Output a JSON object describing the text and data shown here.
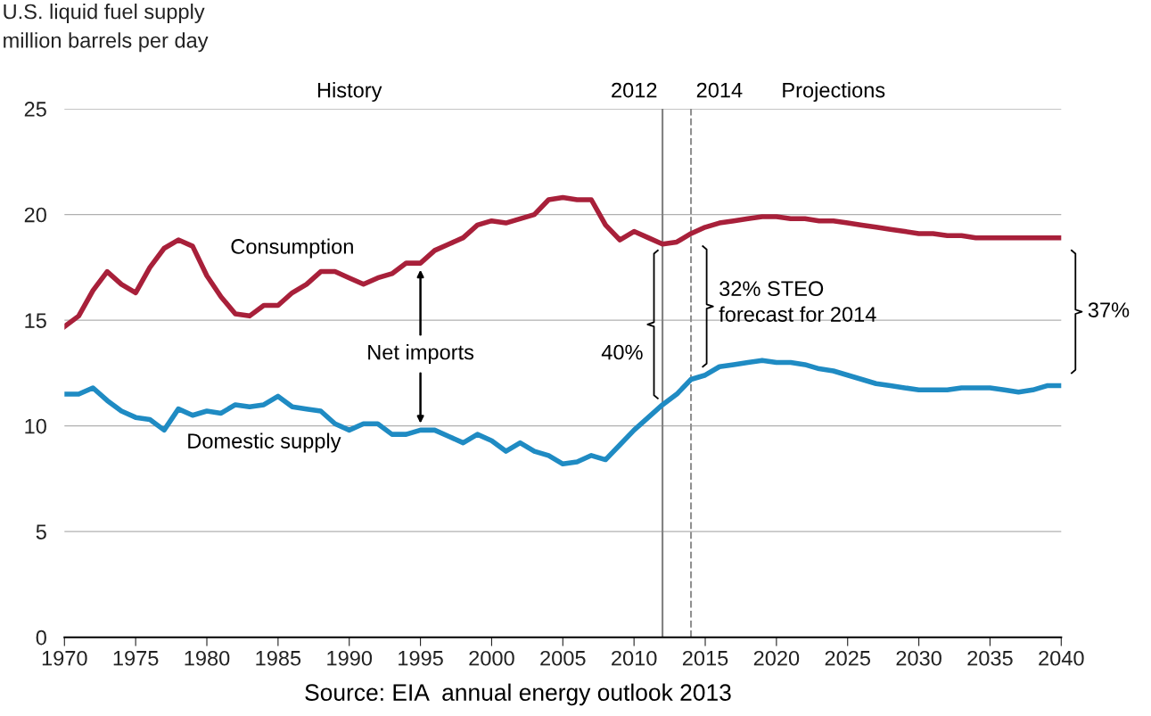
{
  "chart_data": {
    "type": "line",
    "ylabel": "U.S. liquid fuel supply\nmillion barrels per day",
    "x": [
      1970,
      1971,
      1972,
      1973,
      1974,
      1975,
      1976,
      1977,
      1978,
      1979,
      1980,
      1981,
      1982,
      1983,
      1984,
      1985,
      1986,
      1987,
      1988,
      1989,
      1990,
      1991,
      1992,
      1993,
      1994,
      1995,
      1996,
      1997,
      1998,
      1999,
      2000,
      2001,
      2002,
      2003,
      2004,
      2005,
      2006,
      2007,
      2008,
      2009,
      2010,
      2011,
      2012,
      2013,
      2014,
      2015,
      2016,
      2017,
      2018,
      2019,
      2020,
      2021,
      2022,
      2023,
      2024,
      2025,
      2026,
      2027,
      2028,
      2029,
      2030,
      2031,
      2032,
      2033,
      2034,
      2035,
      2036,
      2037,
      2038,
      2039,
      2040
    ],
    "series": [
      {
        "color": "#a8203a",
        "values": [
          14.7,
          15.2,
          16.4,
          17.3,
          16.7,
          16.3,
          17.5,
          18.4,
          18.8,
          18.5,
          17.1,
          16.1,
          15.3,
          15.2,
          15.7,
          15.7,
          16.3,
          16.7,
          17.3,
          17.3,
          17.0,
          16.7,
          17.0,
          17.2,
          17.7,
          17.7,
          18.3,
          18.6,
          18.9,
          19.5,
          19.7,
          19.6,
          19.8,
          20.0,
          20.7,
          20.8,
          20.7,
          20.7,
          19.5,
          18.8,
          19.2,
          18.9,
          18.6,
          18.7,
          19.1,
          19.4,
          19.6,
          19.7,
          19.8,
          19.9,
          19.9,
          19.8,
          19.8,
          19.7,
          19.7,
          19.6,
          19.5,
          19.4,
          19.3,
          19.2,
          19.1,
          19.1,
          19.0,
          19.0,
          18.9,
          18.9,
          18.9,
          18.9,
          18.9,
          18.9,
          18.9
        ]
      },
      {
        "color": "#1f8bc3",
        "values": [
          11.5,
          11.5,
          11.8,
          11.2,
          10.7,
          10.4,
          10.3,
          9.8,
          10.8,
          10.5,
          10.7,
          10.6,
          11.0,
          10.9,
          11.0,
          11.4,
          10.9,
          10.8,
          10.7,
          10.1,
          9.8,
          10.1,
          10.1,
          9.6,
          9.6,
          9.8,
          9.8,
          9.5,
          9.2,
          9.6,
          9.3,
          8.8,
          9.2,
          8.8,
          8.6,
          8.2,
          8.3,
          8.6,
          8.4,
          9.1,
          9.8,
          10.4,
          11.0,
          11.5,
          12.2,
          12.4,
          12.8,
          12.9,
          13.0,
          13.1,
          13.0,
          13.0,
          12.9,
          12.7,
          12.6,
          12.4,
          12.2,
          12.0,
          11.9,
          11.8,
          11.7,
          11.7,
          11.7,
          11.8,
          11.8,
          11.8,
          11.7,
          11.6,
          11.7,
          11.9,
          11.9
        ]
      }
    ],
    "xlim": [
      1970,
      2040
    ],
    "xticks": [
      1970,
      1975,
      1980,
      1985,
      1990,
      1995,
      2000,
      2005,
      2010,
      2015,
      2020,
      2025,
      2030,
      2035,
      2040
    ],
    "ylim": [
      0,
      25
    ],
    "yticks": [
      0,
      5,
      10,
      15,
      20,
      25
    ],
    "grid": "y",
    "ref_lines": [
      {
        "axis": "x",
        "value": 2012,
        "label": "2012",
        "color": "#808080",
        "line_style": "solid"
      },
      {
        "axis": "x",
        "value": 2014,
        "label": "2014",
        "color": "#909090",
        "line_style": "dashed"
      }
    ],
    "annotations": [
      "History",
      "Projections",
      "Consumption",
      "Domestic supply",
      "Net imports",
      "40%",
      "32% STEO\nforecast for 2014",
      "37%",
      "Source: EIA  annual energy outlook 2013"
    ]
  }
}
